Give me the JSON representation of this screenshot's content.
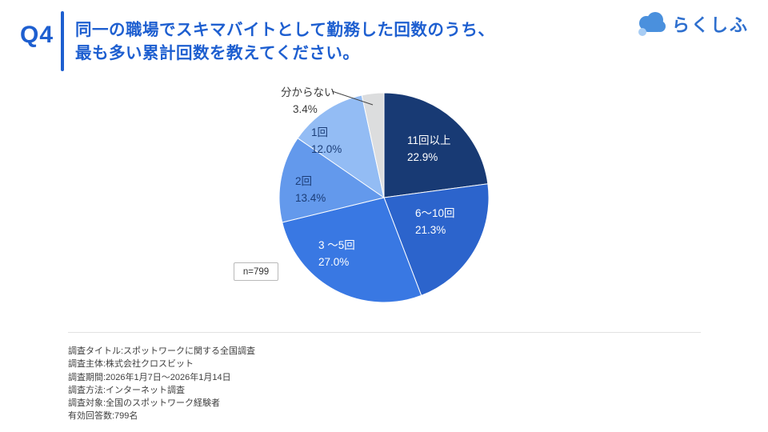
{
  "header": {
    "question_number": "Q4",
    "title_line1": "同一の職場でスキマバイトとして勤務した回数のうち、",
    "title_line2": "最も多い累計回数を教えてください。",
    "brand": "らくしふ",
    "accent_color": "#1e5fd0",
    "brand_color": "#2e6fce"
  },
  "chart_data": {
    "type": "pie",
    "title": "同一の職場でスキマバイトとして勤務した回数のうち、最も多い累計回数",
    "n_label": "n=799",
    "start_angle_deg": 0,
    "direction": "clockwise",
    "legend_position": "none",
    "slices": [
      {
        "label": "11回以上",
        "value": 22.9,
        "display": "22.9%",
        "color": "#183a74",
        "label_color": "#ffffff",
        "placement": "inside"
      },
      {
        "label": "6〜10回",
        "value": 21.3,
        "display": "21.3%",
        "color": "#2c64cc",
        "label_color": "#ffffff",
        "placement": "inside"
      },
      {
        "label": "3 〜5回",
        "value": 27.0,
        "display": "27.0%",
        "color": "#3978e3",
        "label_color": "#ffffff",
        "placement": "inside"
      },
      {
        "label": "2回",
        "value": 13.4,
        "display": "13.4%",
        "color": "#6399ec",
        "label_color": "#1c3e78",
        "placement": "inside"
      },
      {
        "label": "1回",
        "value": 12.0,
        "display": "12.0%",
        "color": "#93bcf4",
        "label_color": "#1c3e78",
        "placement": "inside"
      },
      {
        "label": "分からない",
        "value": 3.4,
        "display": "3.4%",
        "color": "#dcddde",
        "label_color": "#3c3c3c",
        "placement": "callout"
      }
    ]
  },
  "footer": {
    "lines": [
      "調査タイトル:スポットワークに関する全国調査",
      "調査主体:株式会社クロスビット",
      "調査期間:2026年1月7日〜2026年1月14日",
      "調査方法:インターネット調査",
      "調査対象:全国のスポットワーク経験者",
      "有効回答数:799名"
    ]
  }
}
